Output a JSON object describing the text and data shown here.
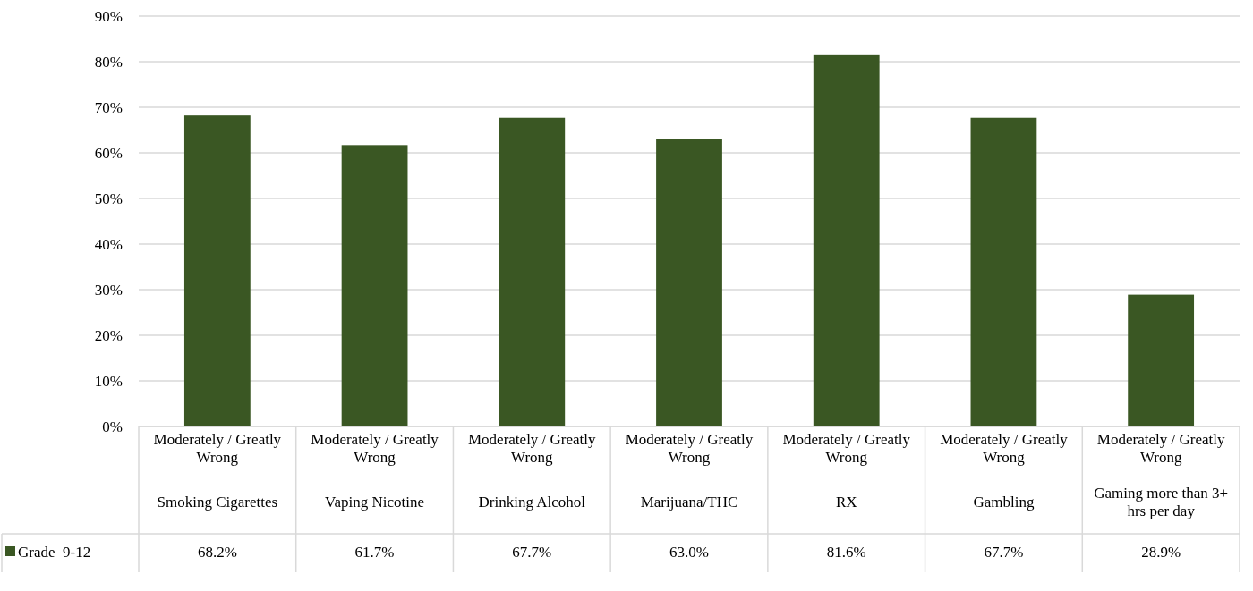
{
  "chart_data": {
    "type": "bar",
    "categories": [
      "Moderately / Greatly Wrong\nSmoking Cigarettes",
      "Moderately / Greatly Wrong\nVaping Nicotine",
      "Moderately / Greatly Wrong\nDrinking Alcohol",
      "Moderately / Greatly Wrong\nMarijuana/THC",
      "Moderately / Greatly Wrong\nRX",
      "Moderately / Greatly Wrong\nGambling",
      "Moderately / Greatly Wrong\nGaming more than 3+ hrs per day"
    ],
    "series": [
      {
        "name": "Grade  9-12",
        "color": "#3a5723",
        "values": [
          68.2,
          61.7,
          67.7,
          63.0,
          81.6,
          67.7,
          28.9
        ],
        "value_labels": [
          "68.2%",
          "61.7%",
          "67.7%",
          "63.0%",
          "81.6%",
          "67.7%",
          "28.9%"
        ]
      }
    ],
    "ylim": [
      0,
      90
    ],
    "yticks": [
      {
        "value": 0,
        "label": "0%"
      },
      {
        "value": 10,
        "label": "10%"
      },
      {
        "value": 20,
        "label": "20%"
      },
      {
        "value": 30,
        "label": "30%"
      },
      {
        "value": 40,
        "label": "40%"
      },
      {
        "value": 50,
        "label": "50%"
      },
      {
        "value": 60,
        "label": "60%"
      },
      {
        "value": 70,
        "label": "70%"
      },
      {
        "value": 80,
        "label": "80%"
      },
      {
        "value": 90,
        "label": "90%"
      }
    ],
    "grid": "y",
    "legend": "bottom"
  }
}
